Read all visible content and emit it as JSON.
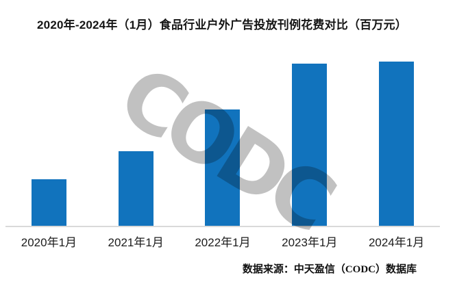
{
  "header": {
    "title": "2020年-2024年（1月）食品行业户外广告投放刊例花费对比（百万元）"
  },
  "watermark": {
    "text": "CODC"
  },
  "footer": {
    "source": "数据来源：中天盈信（CODC）数据库"
  },
  "colors": {
    "bar": "#1173bd",
    "axis": "#d9d9d9",
    "watermark": "#8d8d8d",
    "title_text": "#151515"
  },
  "chart_data": {
    "type": "bar",
    "title": "2020年-2024年（1月）食品行业户外广告投放刊例花费对比（百万元）",
    "categories": [
      "2020年1月",
      "2021年1月",
      "2022年1月",
      "2023年1月",
      "2024年1月"
    ],
    "values": [
      28.3,
      45.4,
      70.8,
      98.8,
      100
    ],
    "unit": "百万元",
    "xlabel": "",
    "ylabel": "",
    "ylim": [
      0,
      105
    ],
    "grid": false,
    "legend": false,
    "value_labels_visible": false,
    "values_note": "Chart shows no numeric axis or data labels; values are estimated relative heights normalized to the tallest bar (2024年1月) = 100."
  }
}
